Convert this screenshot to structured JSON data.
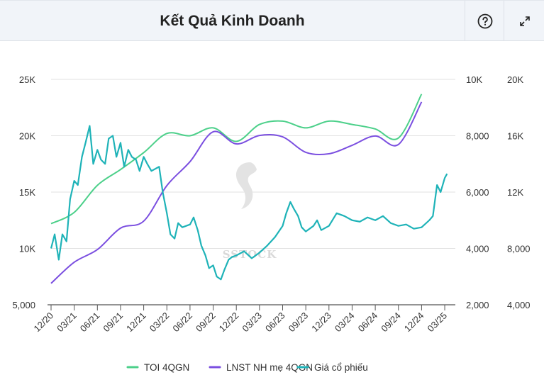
{
  "header": {
    "title": "Kết Quả Kinh Doanh",
    "help_icon": "question-circle-icon",
    "expand_icon": "expand-arrows-icon"
  },
  "watermark": "SSTOCK",
  "chart_data": {
    "type": "line",
    "x_ticks": [
      "12/20",
      "03/21",
      "06/21",
      "09/21",
      "12/21",
      "03/22",
      "06/22",
      "09/22",
      "12/22",
      "03/23",
      "06/23",
      "09/23",
      "12/23",
      "03/24",
      "06/24",
      "09/24",
      "12/24",
      "03/25"
    ],
    "axes": {
      "left": {
        "ticks": [
          "5,000",
          "10K",
          "15K",
          "20K",
          "25K"
        ],
        "range": [
          5000,
          25000
        ]
      },
      "right1": {
        "ticks": [
          "2,000",
          "4,000",
          "6,000",
          "8,000",
          "10K"
        ],
        "range": [
          2000,
          10000
        ]
      },
      "right2": {
        "ticks": [
          "4,000",
          "8,000",
          "12K",
          "16K",
          "20K"
        ],
        "range": [
          4000,
          20000
        ]
      }
    },
    "grid": true,
    "legend_position": "bottom",
    "series": [
      {
        "name": "TOI 4QGN",
        "axis": "left",
        "color": "#4cd08a",
        "x": [
          "12/20",
          "03/21",
          "06/21",
          "09/21",
          "12/21",
          "03/22",
          "06/22",
          "09/22",
          "12/22",
          "03/23",
          "06/23",
          "09/23",
          "12/23",
          "03/24",
          "06/24",
          "09/24",
          "12/24"
        ],
        "values": [
          12200,
          13200,
          15600,
          17000,
          18500,
          20200,
          20000,
          20700,
          19500,
          21000,
          21300,
          20700,
          21300,
          21000,
          20600,
          19800,
          23700
        ]
      },
      {
        "name": "LNST NH mẹ 4QGN",
        "axis": "right1",
        "color": "#7b4fe0",
        "x": [
          "12/20",
          "03/21",
          "06/21",
          "09/21",
          "12/21",
          "03/22",
          "06/22",
          "09/22",
          "12/22",
          "03/23",
          "06/23",
          "09/23",
          "12/23",
          "03/24",
          "06/24",
          "09/24",
          "12/24"
        ],
        "values": [
          2760,
          3510,
          3960,
          4720,
          4970,
          6230,
          7080,
          8140,
          7710,
          8010,
          7960,
          7410,
          7360,
          7660,
          7990,
          7690,
          9200
        ]
      },
      {
        "name": "Giá cổ phiếu",
        "axis": "right2",
        "color": "#1fb3b8",
        "x": [
          "2020-12",
          "2020-12-15",
          "2021-01",
          "2021-01-15",
          "2021-02",
          "2021-02-15",
          "2021-03",
          "2021-03-15",
          "2021-04",
          "2021-04-15",
          "2021-05",
          "2021-05-15",
          "2021-06",
          "2021-06-15",
          "2021-07",
          "2021-07-15",
          "2021-08",
          "2021-08-15",
          "2021-09",
          "2021-09-15",
          "2021-10",
          "2021-10-15",
          "2021-11",
          "2021-11-15",
          "2021-12",
          "2021-12-15",
          "2022-01",
          "2022-02",
          "2022-02-15",
          "2022-03",
          "2022-03-15",
          "2022-04",
          "2022-04-15",
          "2022-05",
          "2022-06",
          "2022-06-15",
          "2022-07",
          "2022-07-15",
          "2022-08",
          "2022-08-15",
          "2022-09",
          "2022-09-15",
          "2022-10",
          "2022-10-15",
          "2022-11",
          "2022-11-15",
          "2022-12",
          "2023-01",
          "2023-02",
          "2023-03",
          "2023-04",
          "2023-05",
          "2023-06",
          "2023-06-15",
          "2023-07",
          "2023-07-15",
          "2023-08",
          "2023-08-15",
          "2023-09",
          "2023-10",
          "2023-10-15",
          "2023-11",
          "2023-12",
          "2024-01",
          "2024-02",
          "2024-03",
          "2024-04",
          "2024-05",
          "2024-06",
          "2024-07",
          "2024-08",
          "2024-09",
          "2024-10",
          "2024-11",
          "2024-12",
          "2025-01",
          "2025-01-15",
          "2025-02",
          "2025-02-15",
          "2025-03",
          "2025-03-10"
        ],
        "values": [
          8000,
          9000,
          7200,
          9000,
          8500,
          11500,
          12800,
          12500,
          14500,
          15500,
          16700,
          14000,
          15000,
          14300,
          14000,
          15800,
          16000,
          14500,
          15500,
          13800,
          15000,
          14500,
          14300,
          13500,
          14500,
          14000,
          13500,
          13800,
          12000,
          10500,
          9000,
          8700,
          9800,
          9500,
          9700,
          10200,
          9300,
          8200,
          7500,
          6600,
          6800,
          6000,
          5800,
          6500,
          7200,
          7400,
          7500,
          7800,
          7300,
          7700,
          8200,
          8800,
          9600,
          10500,
          11300,
          10800,
          10300,
          9500,
          9200,
          9600,
          10000,
          9300,
          9600,
          10500,
          10300,
          10000,
          9900,
          10200,
          10000,
          10300,
          9800,
          9600,
          9700,
          9400,
          9500,
          10000,
          10300,
          12500,
          12000,
          13000,
          13300
        ]
      }
    ]
  }
}
